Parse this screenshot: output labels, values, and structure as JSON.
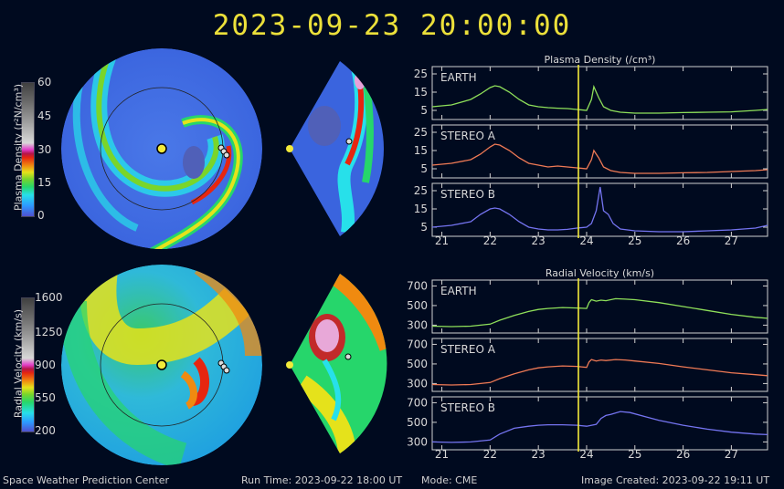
{
  "header": {
    "timestamp": "2023-09-23  20:00:00"
  },
  "colorbars": {
    "density": {
      "label": "Plasma Density (r²N/cm³)",
      "ticks": [
        "60",
        "45",
        "30",
        "15",
        "0"
      ]
    },
    "velocity": {
      "label": "Radial Velocity (km/s)",
      "ticks": [
        "1600",
        "1250",
        "900",
        "550",
        "200"
      ]
    }
  },
  "footer": {
    "center": "Space Weather Prediction Center",
    "runtime": "Run Time: 2023-09-22 18:00 UT",
    "mode": "Mode: CME",
    "created": "Image Created: 2023-09-22 19:11 UT"
  },
  "colors": {
    "title": "#ece03a",
    "earth": "#8ee05a",
    "stereo_a": "#f07a55",
    "stereo_b": "#7474f0",
    "marker": "#f2ea3a"
  },
  "chart_data": [
    {
      "type": "line",
      "title": "Plasma Density (/cm³)",
      "xlim": [
        20.8,
        27.75
      ],
      "xticks": [
        21,
        22,
        23,
        24,
        25,
        26,
        27
      ],
      "marker_x": 23.83,
      "ylim": [
        0,
        29
      ],
      "yticks": [
        5,
        15,
        25
      ],
      "panels": [
        {
          "name": "EARTH",
          "color": "#8ee05a",
          "x": [
            20.8,
            21.2,
            21.6,
            21.8,
            22.0,
            22.1,
            22.2,
            22.4,
            22.6,
            22.8,
            23.0,
            23.2,
            23.4,
            23.6,
            23.8,
            24.0,
            24.1,
            24.15,
            24.25,
            24.35,
            24.5,
            24.7,
            25.0,
            25.5,
            26.0,
            26.5,
            27.0,
            27.5,
            27.75
          ],
          "y": [
            7,
            8,
            11,
            14,
            17.5,
            18.5,
            18,
            15,
            11,
            8,
            7,
            6.5,
            6.2,
            6,
            5.5,
            5,
            11,
            18,
            12,
            7,
            5,
            4,
            3.5,
            3.5,
            3.8,
            4,
            4.2,
            5,
            5.5
          ]
        },
        {
          "name": "STEREO A",
          "color": "#f07a55",
          "x": [
            20.8,
            21.2,
            21.6,
            21.8,
            22.0,
            22.1,
            22.2,
            22.4,
            22.6,
            22.8,
            23.0,
            23.2,
            23.4,
            23.6,
            23.8,
            24.0,
            24.1,
            24.15,
            24.25,
            24.35,
            24.5,
            24.7,
            25.0,
            25.5,
            26.0,
            26.5,
            27.0,
            27.5,
            27.75
          ],
          "y": [
            7,
            8,
            10,
            13,
            17,
            18.5,
            18,
            15,
            11,
            8,
            7,
            6,
            6.5,
            6,
            5.5,
            5,
            10,
            15,
            11,
            6,
            4,
            3,
            2.5,
            2.5,
            2.8,
            3,
            3.5,
            4,
            4.5
          ]
        },
        {
          "name": "STEREO B",
          "color": "#7474f0",
          "x": [
            20.8,
            21.2,
            21.6,
            21.8,
            22.0,
            22.1,
            22.2,
            22.4,
            22.6,
            22.8,
            23.0,
            23.2,
            23.4,
            23.6,
            23.8,
            24.0,
            24.1,
            24.2,
            24.28,
            24.35,
            24.45,
            24.55,
            24.7,
            25.0,
            25.5,
            26.0,
            26.5,
            27.0,
            27.5,
            27.75
          ],
          "y": [
            5,
            6,
            8,
            12,
            15,
            15.5,
            15,
            12,
            8,
            5,
            4,
            3.5,
            3.5,
            3.8,
            4.5,
            5,
            7,
            14,
            27,
            14,
            12,
            7,
            4,
            3,
            2.5,
            2.5,
            3,
            3.5,
            4.5,
            6
          ]
        }
      ]
    },
    {
      "type": "line",
      "title": "Radial Velocity (km/s)",
      "xlim": [
        20.8,
        27.75
      ],
      "xticks": [
        21,
        22,
        23,
        24,
        25,
        26,
        27
      ],
      "marker_x": 23.83,
      "ylim": [
        220,
        760
      ],
      "yticks": [
        300,
        500,
        700
      ],
      "panels": [
        {
          "name": "EARTH",
          "color": "#8ee05a",
          "x": [
            20.8,
            21.2,
            21.6,
            22.0,
            22.2,
            22.5,
            22.8,
            23.0,
            23.2,
            23.5,
            23.8,
            24.0,
            24.05,
            24.1,
            24.2,
            24.3,
            24.4,
            24.6,
            24.8,
            25.0,
            25.5,
            26.0,
            26.5,
            27.0,
            27.5,
            27.75
          ],
          "y": [
            290,
            285,
            290,
            310,
            350,
            400,
            440,
            460,
            470,
            480,
            475,
            470,
            530,
            560,
            545,
            555,
            550,
            570,
            565,
            560,
            530,
            490,
            450,
            410,
            380,
            370
          ]
        },
        {
          "name": "STEREO A",
          "color": "#f07a55",
          "x": [
            20.8,
            21.2,
            21.6,
            22.0,
            22.2,
            22.5,
            22.8,
            23.0,
            23.2,
            23.5,
            23.8,
            24.0,
            24.05,
            24.1,
            24.2,
            24.3,
            24.4,
            24.6,
            24.8,
            25.0,
            25.5,
            26.0,
            26.5,
            27.0,
            27.5,
            27.75
          ],
          "y": [
            290,
            285,
            290,
            310,
            350,
            400,
            440,
            460,
            470,
            480,
            475,
            465,
            520,
            545,
            530,
            540,
            535,
            545,
            540,
            530,
            505,
            470,
            440,
            410,
            390,
            380
          ]
        },
        {
          "name": "STEREO B",
          "color": "#7474f0",
          "x": [
            20.8,
            21.2,
            21.6,
            22.0,
            22.2,
            22.5,
            22.8,
            23.0,
            23.2,
            23.5,
            23.8,
            24.0,
            24.2,
            24.3,
            24.4,
            24.5,
            24.7,
            24.9,
            25.2,
            25.5,
            26.0,
            26.5,
            27.0,
            27.5,
            27.75
          ],
          "y": [
            300,
            295,
            300,
            320,
            380,
            440,
            460,
            470,
            475,
            475,
            470,
            460,
            480,
            540,
            570,
            580,
            610,
            600,
            560,
            520,
            470,
            430,
            400,
            380,
            375
          ]
        }
      ]
    }
  ]
}
